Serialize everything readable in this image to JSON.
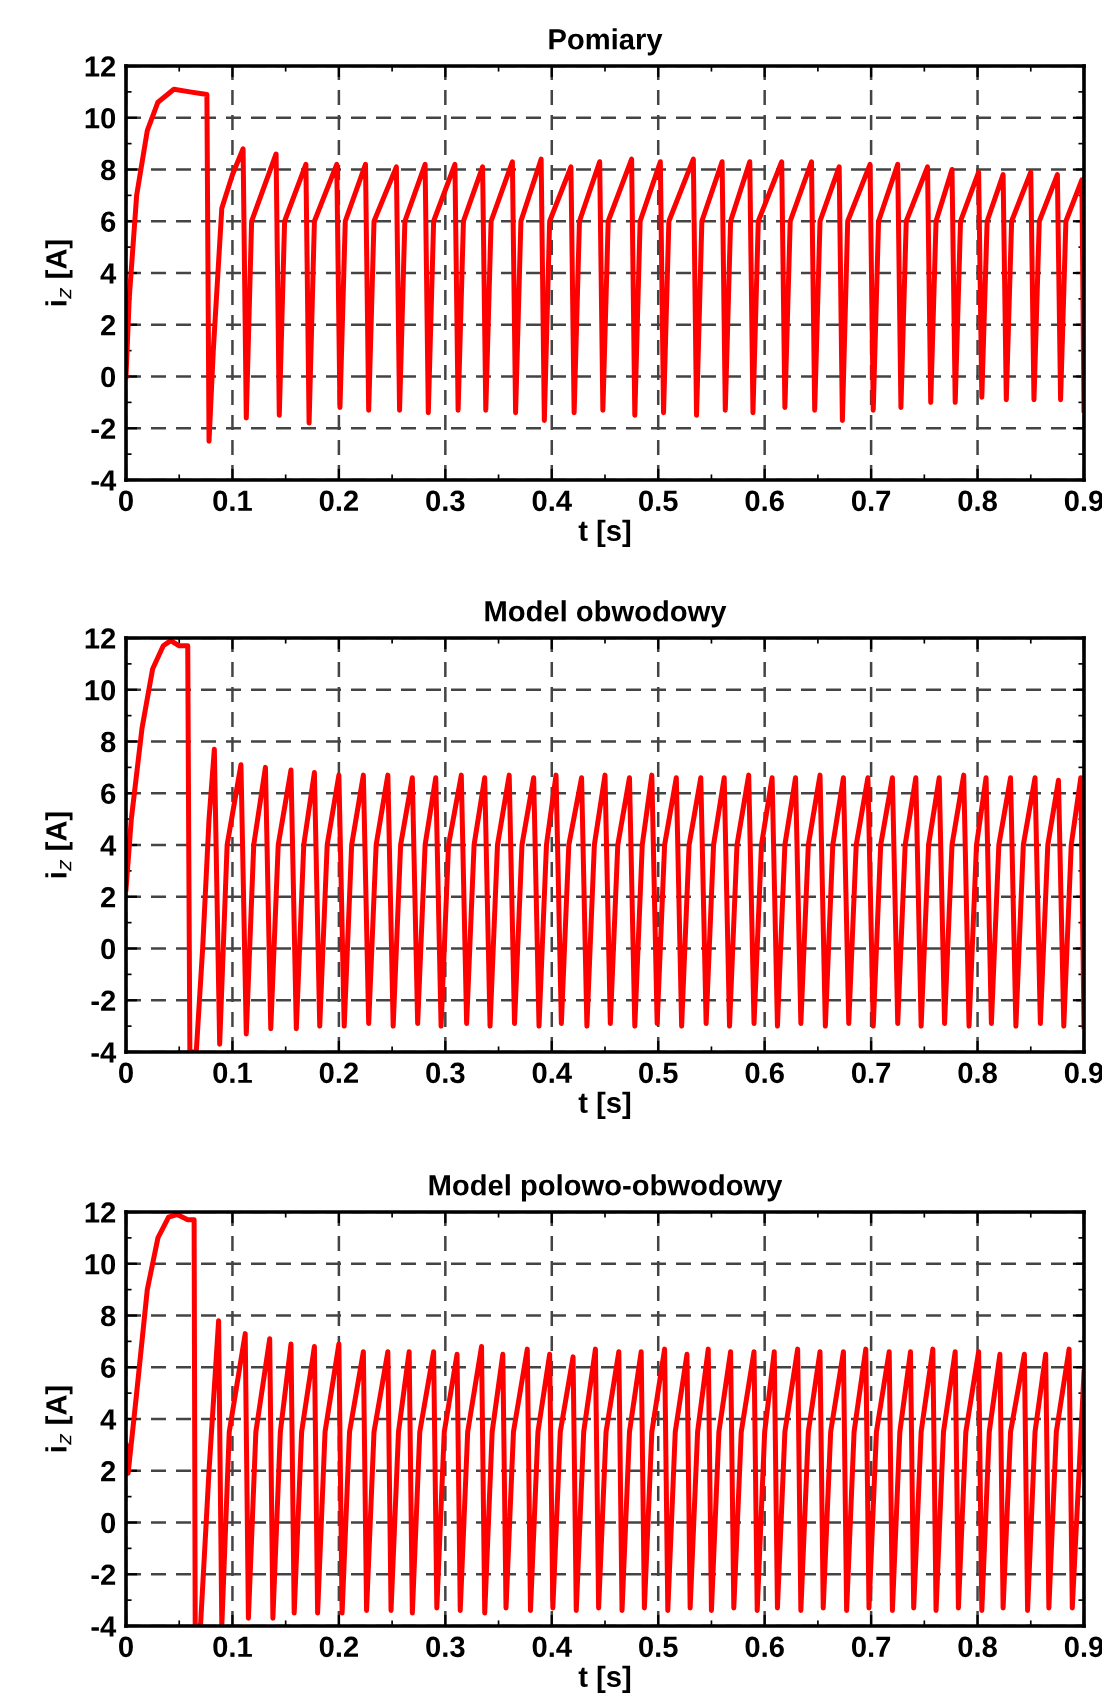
{
  "chart_data": [
    {
      "type": "line",
      "title": "Pomiary",
      "xlabel": "t [s]",
      "ylabel": "i$_{z}$ [A]",
      "xlim": [
        0,
        0.9
      ],
      "ylim": [
        -4,
        12
      ],
      "xticks": [
        0,
        0.1,
        0.2,
        0.3,
        0.4,
        0.5,
        0.6,
        0.7,
        0.8,
        0.9
      ],
      "yticks": [
        -4,
        -2,
        0,
        2,
        4,
        6,
        8,
        10,
        12
      ],
      "grid": true,
      "line_style": "solid",
      "marker": "none",
      "series": [
        {
          "color": "#ff0000",
          "x": [
            0,
            0.003,
            0.01,
            0.02,
            0.03,
            0.045,
            0.06,
            0.076,
            0.078,
            0.082,
            0.09,
            0.1,
            0.11,
            0.113,
            0.118,
            0.141,
            0.144,
            0.149,
            0.169,
            0.172,
            0.177,
            0.198,
            0.201,
            0.206,
            0.225,
            0.228,
            0.233,
            0.254,
            0.257,
            0.262,
            0.281,
            0.284,
            0.289,
            0.309,
            0.312,
            0.317,
            0.335,
            0.338,
            0.343,
            0.363,
            0.366,
            0.371,
            0.39,
            0.393,
            0.398,
            0.418,
            0.421,
            0.426,
            0.445,
            0.448,
            0.453,
            0.475,
            0.478,
            0.483,
            0.502,
            0.505,
            0.51,
            0.533,
            0.536,
            0.541,
            0.56,
            0.563,
            0.568,
            0.586,
            0.589,
            0.594,
            0.616,
            0.619,
            0.624,
            0.644,
            0.647,
            0.652,
            0.67,
            0.673,
            0.678,
            0.699,
            0.702,
            0.707,
            0.725,
            0.728,
            0.733,
            0.753,
            0.756,
            0.761,
            0.776,
            0.779,
            0.784,
            0.801,
            0.804,
            0.809,
            0.824,
            0.827,
            0.832,
            0.85,
            0.853,
            0.858,
            0.875,
            0.878,
            0.883,
            0.898,
            0.9
          ],
          "values": [
            0,
            3,
            7,
            9.5,
            10.6,
            11.1,
            11,
            10.9,
            -2.5,
            1,
            6.5,
            7.8,
            8.8,
            -1.6,
            6,
            8.6,
            -1.5,
            6,
            8.2,
            -1.8,
            6,
            8.2,
            -1.2,
            6,
            8.2,
            -1.3,
            6,
            8.1,
            -1.3,
            6,
            8.2,
            -1.4,
            6,
            8.2,
            -1.3,
            6,
            8.1,
            -1.3,
            6,
            8.3,
            -1.4,
            6,
            8.4,
            -1.7,
            6,
            8.1,
            -1.4,
            6,
            8.3,
            -1.3,
            6,
            8.4,
            -1.5,
            6,
            8.3,
            -1.4,
            6,
            8.4,
            -1.5,
            6,
            8.3,
            -1.3,
            6,
            8.3,
            -1.4,
            6,
            8.3,
            -1.2,
            6,
            8.3,
            -1.3,
            6,
            8.1,
            -1.7,
            6,
            8.2,
            -1.3,
            6,
            8.2,
            -1.2,
            6,
            8.1,
            -1.0,
            6,
            8.0,
            -1.0,
            6,
            7.9,
            -0.8,
            6,
            7.8,
            -0.9,
            6,
            7.9,
            -0.9,
            6,
            7.8,
            -0.9,
            6,
            7.6,
            -1.3
          ]
        }
      ]
    },
    {
      "type": "line",
      "title": "Model obwodowy",
      "xlabel": "t [s]",
      "ylabel": "i$_{z}$ [A]",
      "xlim": [
        0,
        0.9
      ],
      "ylim": [
        -4,
        12
      ],
      "xticks": [
        0,
        0.1,
        0.2,
        0.3,
        0.4,
        0.5,
        0.6,
        0.7,
        0.8,
        0.9
      ],
      "yticks": [
        -4,
        -2,
        0,
        2,
        4,
        6,
        8,
        10,
        12
      ],
      "grid": true,
      "line_style": "solid",
      "marker": "none",
      "series": [
        {
          "color": "#ff0000",
          "x": [
            0,
            0.005,
            0.015,
            0.025,
            0.035,
            0.042,
            0.05,
            0.058,
            0.059,
            0.06,
            0.066,
            0.072,
            0.078,
            0.083,
            0.088,
            0.095,
            0.108,
            0.113,
            0.12,
            0.131,
            0.136,
            0.143,
            0.155,
            0.16,
            0.167,
            0.177,
            0.182,
            0.189,
            0.2,
            0.205,
            0.212,
            0.223,
            0.228,
            0.235,
            0.246,
            0.251,
            0.258,
            0.269,
            0.274,
            0.281,
            0.291,
            0.296,
            0.303,
            0.315,
            0.32,
            0.327,
            0.337,
            0.342,
            0.349,
            0.36,
            0.365,
            0.372,
            0.383,
            0.388,
            0.395,
            0.404,
            0.409,
            0.416,
            0.428,
            0.433,
            0.44,
            0.45,
            0.455,
            0.462,
            0.473,
            0.478,
            0.485,
            0.494,
            0.499,
            0.506,
            0.517,
            0.522,
            0.529,
            0.54,
            0.545,
            0.552,
            0.562,
            0.567,
            0.574,
            0.585,
            0.59,
            0.597,
            0.607,
            0.612,
            0.619,
            0.629,
            0.634,
            0.641,
            0.652,
            0.657,
            0.664,
            0.674,
            0.679,
            0.686,
            0.697,
            0.702,
            0.709,
            0.72,
            0.725,
            0.732,
            0.742,
            0.747,
            0.754,
            0.764,
            0.769,
            0.776,
            0.787,
            0.792,
            0.799,
            0.808,
            0.813,
            0.82,
            0.831,
            0.836,
            0.843,
            0.854,
            0.859,
            0.866,
            0.876,
            0.881,
            0.888,
            0.897,
            0.9
          ],
          "values": [
            2.3,
            5,
            8.5,
            10.8,
            11.7,
            11.9,
            11.7,
            11.7,
            3.5,
            -4,
            -4,
            0,
            5,
            7.7,
            -3.7,
            4,
            7.1,
            -3.3,
            4,
            7.0,
            -3.1,
            4,
            6.9,
            -3.1,
            4,
            6.8,
            -3.0,
            4,
            6.7,
            -3.0,
            4,
            6.7,
            -2.9,
            4,
            6.7,
            -3.0,
            4,
            6.6,
            -2.9,
            4,
            6.6,
            -3.0,
            4,
            6.7,
            -2.9,
            4,
            6.6,
            -3.0,
            4,
            6.7,
            -2.9,
            4,
            6.6,
            -3.0,
            4,
            6.7,
            -2.9,
            4,
            6.6,
            -3.0,
            4,
            6.7,
            -2.9,
            4,
            6.6,
            -3.0,
            4,
            6.7,
            -2.9,
            4,
            6.6,
            -3.0,
            4,
            6.6,
            -2.9,
            4,
            6.6,
            -3.0,
            4,
            6.7,
            -2.9,
            4,
            6.6,
            -3.0,
            4,
            6.6,
            -2.9,
            4,
            6.7,
            -3.0,
            4,
            6.6,
            -2.9,
            4,
            6.6,
            -3.0,
            4,
            6.6,
            -2.9,
            4,
            6.6,
            -3.0,
            4,
            6.6,
            -2.9,
            4,
            6.7,
            -3.0,
            4,
            6.6,
            -2.9,
            4,
            6.6,
            -3.0,
            4,
            6.6,
            -2.9,
            4,
            6.5,
            -3.0,
            4,
            6.6,
            -3.0
          ]
        }
      ]
    },
    {
      "type": "line",
      "title": "Model polowo-obwodowy",
      "xlabel": "t [s]",
      "ylabel": "i$_{z}$ [A]",
      "xlim": [
        0,
        0.9
      ],
      "ylim": [
        -4,
        12
      ],
      "xticks": [
        0,
        0.1,
        0.2,
        0.3,
        0.4,
        0.5,
        0.6,
        0.7,
        0.8,
        0.9
      ],
      "yticks": [
        -4,
        -2,
        0,
        2,
        4,
        6,
        8,
        10,
        12
      ],
      "grid": true,
      "line_style": "solid",
      "marker": "none",
      "series": [
        {
          "color": "#ff0000",
          "x": [
            0,
            0.002,
            0.01,
            0.02,
            0.03,
            0.04,
            0.048,
            0.058,
            0.064,
            0.065,
            0.07,
            0.078,
            0.087,
            0.09,
            0.097,
            0.112,
            0.115,
            0.122,
            0.135,
            0.138,
            0.145,
            0.155,
            0.158,
            0.165,
            0.177,
            0.18,
            0.187,
            0.2,
            0.203,
            0.21,
            0.223,
            0.226,
            0.233,
            0.246,
            0.249,
            0.256,
            0.266,
            0.269,
            0.276,
            0.289,
            0.292,
            0.299,
            0.311,
            0.314,
            0.321,
            0.334,
            0.337,
            0.344,
            0.354,
            0.357,
            0.364,
            0.377,
            0.38,
            0.387,
            0.398,
            0.401,
            0.408,
            0.42,
            0.423,
            0.43,
            0.441,
            0.444,
            0.451,
            0.463,
            0.466,
            0.473,
            0.484,
            0.487,
            0.494,
            0.506,
            0.509,
            0.516,
            0.527,
            0.53,
            0.537,
            0.547,
            0.55,
            0.557,
            0.568,
            0.571,
            0.578,
            0.59,
            0.593,
            0.6,
            0.609,
            0.612,
            0.619,
            0.631,
            0.634,
            0.641,
            0.652,
            0.655,
            0.662,
            0.674,
            0.677,
            0.684,
            0.695,
            0.698,
            0.705,
            0.717,
            0.72,
            0.727,
            0.737,
            0.74,
            0.747,
            0.758,
            0.761,
            0.768,
            0.779,
            0.782,
            0.789,
            0.801,
            0.804,
            0.811,
            0.821,
            0.824,
            0.831,
            0.844,
            0.847,
            0.854,
            0.864,
            0.867,
            0.874,
            0.886,
            0.889,
            0.9
          ],
          "values": [
            3,
            1.9,
            5,
            9,
            11,
            11.8,
            11.9,
            11.7,
            11.7,
            -4,
            -4,
            2,
            7.8,
            -4,
            3.5,
            7.3,
            -3.7,
            3.5,
            7.1,
            -3.7,
            3.5,
            6.9,
            -3.5,
            3.5,
            6.8,
            -3.5,
            3.5,
            6.9,
            -3.5,
            3.5,
            6.6,
            -3.4,
            3.5,
            6.6,
            -3.4,
            3.5,
            6.6,
            -3.5,
            3.5,
            6.6,
            -3.3,
            3.5,
            6.5,
            -3.4,
            3.5,
            6.8,
            -3.5,
            3.5,
            6.5,
            -3.3,
            3.5,
            6.7,
            -3.4,
            3.5,
            6.5,
            -3.3,
            3.5,
            6.4,
            -3.4,
            3.5,
            6.7,
            -3.3,
            3.5,
            6.6,
            -3.4,
            3.5,
            6.6,
            -3.3,
            3.5,
            6.7,
            -3.4,
            3.5,
            6.5,
            -3.3,
            3.5,
            6.7,
            -3.4,
            3.5,
            6.6,
            -3.3,
            3.5,
            6.6,
            -3.4,
            3.5,
            6.6,
            -3.3,
            3.5,
            6.7,
            -3.4,
            3.5,
            6.6,
            -3.3,
            3.5,
            6.6,
            -3.4,
            3.5,
            6.7,
            -3.3,
            3.5,
            6.6,
            -3.4,
            3.5,
            6.6,
            -3.3,
            3.5,
            6.7,
            -3.4,
            3.5,
            6.6,
            -3.3,
            3.5,
            6.6,
            -3.4,
            3.5,
            6.5,
            -3.3,
            3.5,
            6.5,
            -3.4,
            3.5,
            6.5,
            -3.3,
            3.5,
            6.7,
            -3.3,
            5.8
          ]
        }
      ]
    }
  ]
}
